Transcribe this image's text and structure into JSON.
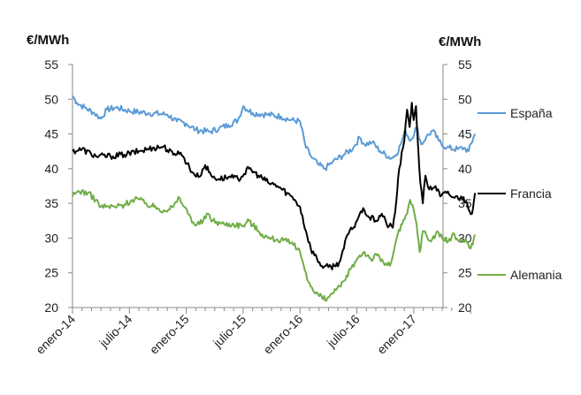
{
  "chart_data": {
    "type": "line",
    "y_unit_left": "€/MWh",
    "y_unit_right": "€/MWh",
    "ylim": [
      20,
      55
    ],
    "y_ticks": [
      "20",
      "25",
      "30",
      "35",
      "40",
      "45",
      "50",
      "55"
    ],
    "x_ticks": [
      "enero-14",
      "julio-14",
      "enero-15",
      "julio-15",
      "enero-16",
      "julio-16",
      "enero-17"
    ],
    "x_range": [
      "2014-01-01",
      "2017-07-15"
    ],
    "grid": false,
    "legend_placement": "right",
    "series": [
      {
        "name": "España",
        "color": "#5b9bd5",
        "points": [
          [
            "2014-01-01",
            50.5
          ],
          [
            "2014-01-15",
            49.5
          ],
          [
            "2014-02-10",
            48.8
          ],
          [
            "2014-03-10",
            48.0
          ],
          [
            "2014-04-01",
            47.2
          ],
          [
            "2014-04-20",
            48.5
          ],
          [
            "2014-05-20",
            48.8
          ],
          [
            "2014-07-01",
            48.3
          ],
          [
            "2014-09-01",
            48.0
          ],
          [
            "2014-11-01",
            47.8
          ],
          [
            "2014-12-01",
            46.8
          ],
          [
            "2015-01-01",
            46.5
          ],
          [
            "2015-02-01",
            45.6
          ],
          [
            "2015-03-15",
            45.3
          ],
          [
            "2015-04-15",
            45.8
          ],
          [
            "2015-05-15",
            46.3
          ],
          [
            "2015-06-15",
            47.0
          ],
          [
            "2015-07-01",
            49.0
          ],
          [
            "2015-08-01",
            48.0
          ],
          [
            "2015-09-15",
            47.8
          ],
          [
            "2015-11-01",
            47.5
          ],
          [
            "2015-12-01",
            47.0
          ],
          [
            "2016-01-01",
            46.8
          ],
          [
            "2016-01-20",
            43.0
          ],
          [
            "2016-02-10",
            41.5
          ],
          [
            "2016-03-01",
            40.5
          ],
          [
            "2016-03-20",
            40.0
          ],
          [
            "2016-04-15",
            41.0
          ],
          [
            "2016-05-20",
            42.0
          ],
          [
            "2016-06-20",
            43.0
          ],
          [
            "2016-07-10",
            44.5
          ],
          [
            "2016-07-25",
            43.5
          ],
          [
            "2016-08-20",
            43.8
          ],
          [
            "2016-09-15",
            42.5
          ],
          [
            "2016-10-20",
            41.5
          ],
          [
            "2016-11-05",
            42.0
          ],
          [
            "2016-11-20",
            43.5
          ],
          [
            "2016-12-05",
            45.5
          ],
          [
            "2016-12-20",
            44.0
          ],
          [
            "2017-01-10",
            46.0
          ],
          [
            "2017-01-25",
            43.5
          ],
          [
            "2017-02-10",
            44.5
          ],
          [
            "2017-03-01",
            45.5
          ],
          [
            "2017-03-20",
            44.0
          ],
          [
            "2017-04-15",
            43.0
          ],
          [
            "2017-05-20",
            42.8
          ],
          [
            "2017-06-10",
            43.0
          ],
          [
            "2017-06-25",
            42.5
          ],
          [
            "2017-07-10",
            44.5
          ],
          [
            "2017-07-15",
            45.0
          ]
        ]
      },
      {
        "name": "Francia",
        "color": "#000000",
        "points": [
          [
            "2014-01-01",
            42.5
          ],
          [
            "2014-02-01",
            42.8
          ],
          [
            "2014-03-15",
            41.8
          ],
          [
            "2014-05-01",
            41.8
          ],
          [
            "2014-06-15",
            42.0
          ],
          [
            "2014-08-01",
            42.5
          ],
          [
            "2014-09-15",
            43.0
          ],
          [
            "2014-10-20",
            43.2
          ],
          [
            "2014-11-20",
            42.0
          ],
          [
            "2014-12-05",
            42.5
          ],
          [
            "2014-12-25",
            41.5
          ],
          [
            "2015-01-20",
            39.5
          ],
          [
            "2015-02-10",
            38.8
          ],
          [
            "2015-03-01",
            40.5
          ],
          [
            "2015-03-20",
            39.0
          ],
          [
            "2015-04-15",
            38.5
          ],
          [
            "2015-05-15",
            38.8
          ],
          [
            "2015-06-15",
            38.5
          ],
          [
            "2015-07-20",
            40.0
          ],
          [
            "2015-08-20",
            39.0
          ],
          [
            "2015-09-20",
            38.0
          ],
          [
            "2015-10-20",
            37.5
          ],
          [
            "2015-11-20",
            36.5
          ],
          [
            "2015-12-15",
            35.5
          ],
          [
            "2016-01-01",
            34.5
          ],
          [
            "2016-01-20",
            31.0
          ],
          [
            "2016-02-05",
            28.5
          ],
          [
            "2016-02-25",
            27.0
          ],
          [
            "2016-03-10",
            26.0
          ],
          [
            "2016-04-01",
            25.8
          ],
          [
            "2016-04-20",
            26.0
          ],
          [
            "2016-05-05",
            26.5
          ],
          [
            "2016-05-20",
            28.5
          ],
          [
            "2016-06-01",
            30.5
          ],
          [
            "2016-06-20",
            31.5
          ],
          [
            "2016-07-10",
            33.5
          ],
          [
            "2016-07-25",
            34.0
          ],
          [
            "2016-08-10",
            33.0
          ],
          [
            "2016-09-01",
            32.5
          ],
          [
            "2016-09-20",
            33.5
          ],
          [
            "2016-10-05",
            32.0
          ],
          [
            "2016-10-25",
            31.5
          ],
          [
            "2016-11-05",
            35.0
          ],
          [
            "2016-11-15",
            40.0
          ],
          [
            "2016-12-01",
            44.0
          ],
          [
            "2016-12-10",
            48.5
          ],
          [
            "2016-12-18",
            46.0
          ],
          [
            "2016-12-25",
            49.5
          ],
          [
            "2017-01-01",
            47.0
          ],
          [
            "2017-01-08",
            49.0
          ],
          [
            "2017-01-15",
            43.0
          ],
          [
            "2017-01-22",
            38.0
          ],
          [
            "2017-01-30",
            35.0
          ],
          [
            "2017-02-08",
            39.0
          ],
          [
            "2017-02-20",
            37.0
          ],
          [
            "2017-03-10",
            37.5
          ],
          [
            "2017-03-25",
            36.0
          ],
          [
            "2017-04-15",
            36.5
          ],
          [
            "2017-05-10",
            35.8
          ],
          [
            "2017-06-01",
            36.0
          ],
          [
            "2017-06-20",
            35.0
          ],
          [
            "2017-07-05",
            33.5
          ],
          [
            "2017-07-15",
            36.5
          ]
        ]
      },
      {
        "name": "Alemania",
        "color": "#70ad47",
        "points": [
          [
            "2014-01-01",
            36.0
          ],
          [
            "2014-01-20",
            36.8
          ],
          [
            "2014-02-20",
            36.5
          ],
          [
            "2014-03-15",
            35.5
          ],
          [
            "2014-04-01",
            34.5
          ],
          [
            "2014-05-15",
            34.5
          ],
          [
            "2014-06-15",
            34.8
          ],
          [
            "2014-07-10",
            35.5
          ],
          [
            "2014-07-25",
            35.8
          ],
          [
            "2014-08-20",
            35.0
          ],
          [
            "2014-09-20",
            34.5
          ],
          [
            "2014-10-20",
            34.0
          ],
          [
            "2014-11-20",
            34.5
          ],
          [
            "2014-12-10",
            35.8
          ],
          [
            "2014-12-25",
            34.5
          ],
          [
            "2015-01-15",
            33.0
          ],
          [
            "2015-02-01",
            31.8
          ],
          [
            "2015-02-25",
            32.5
          ],
          [
            "2015-03-10",
            33.5
          ],
          [
            "2015-03-25",
            32.5
          ],
          [
            "2015-05-01",
            32.0
          ],
          [
            "2015-06-01",
            32.0
          ],
          [
            "2015-07-01",
            31.8
          ],
          [
            "2015-07-20",
            32.5
          ],
          [
            "2015-08-20",
            31.0
          ],
          [
            "2015-09-20",
            30.0
          ],
          [
            "2015-10-20",
            29.8
          ],
          [
            "2015-11-20",
            29.5
          ],
          [
            "2015-12-10",
            29.0
          ],
          [
            "2016-01-01",
            28.0
          ],
          [
            "2016-01-20",
            25.0
          ],
          [
            "2016-02-05",
            23.0
          ],
          [
            "2016-02-20",
            22.0
          ],
          [
            "2016-03-10",
            21.5
          ],
          [
            "2016-03-25",
            21.0
          ],
          [
            "2016-04-10",
            22.0
          ],
          [
            "2016-04-25",
            22.5
          ],
          [
            "2016-05-10",
            23.0
          ],
          [
            "2016-05-25",
            24.0
          ],
          [
            "2016-06-10",
            25.5
          ],
          [
            "2016-06-25",
            26.5
          ],
          [
            "2016-07-10",
            27.5
          ],
          [
            "2016-07-25",
            28.0
          ],
          [
            "2016-08-15",
            27.0
          ],
          [
            "2016-09-05",
            27.5
          ],
          [
            "2016-09-25",
            26.5
          ],
          [
            "2016-10-15",
            26.0
          ],
          [
            "2016-10-30",
            28.5
          ],
          [
            "2016-11-10",
            30.5
          ],
          [
            "2016-11-25",
            32.0
          ],
          [
            "2016-12-10",
            33.5
          ],
          [
            "2016-12-20",
            35.5
          ],
          [
            "2017-01-01",
            34.0
          ],
          [
            "2017-01-10",
            32.0
          ],
          [
            "2017-01-20",
            28.0
          ],
          [
            "2017-01-30",
            31.0
          ],
          [
            "2017-02-10",
            30.5
          ],
          [
            "2017-02-25",
            29.5
          ],
          [
            "2017-03-15",
            31.0
          ],
          [
            "2017-04-01",
            30.0
          ],
          [
            "2017-04-20",
            29.5
          ],
          [
            "2017-05-10",
            30.5
          ],
          [
            "2017-05-25",
            29.5
          ],
          [
            "2017-06-15",
            29.8
          ],
          [
            "2017-07-01",
            28.5
          ],
          [
            "2017-07-15",
            30.5
          ]
        ]
      }
    ]
  }
}
